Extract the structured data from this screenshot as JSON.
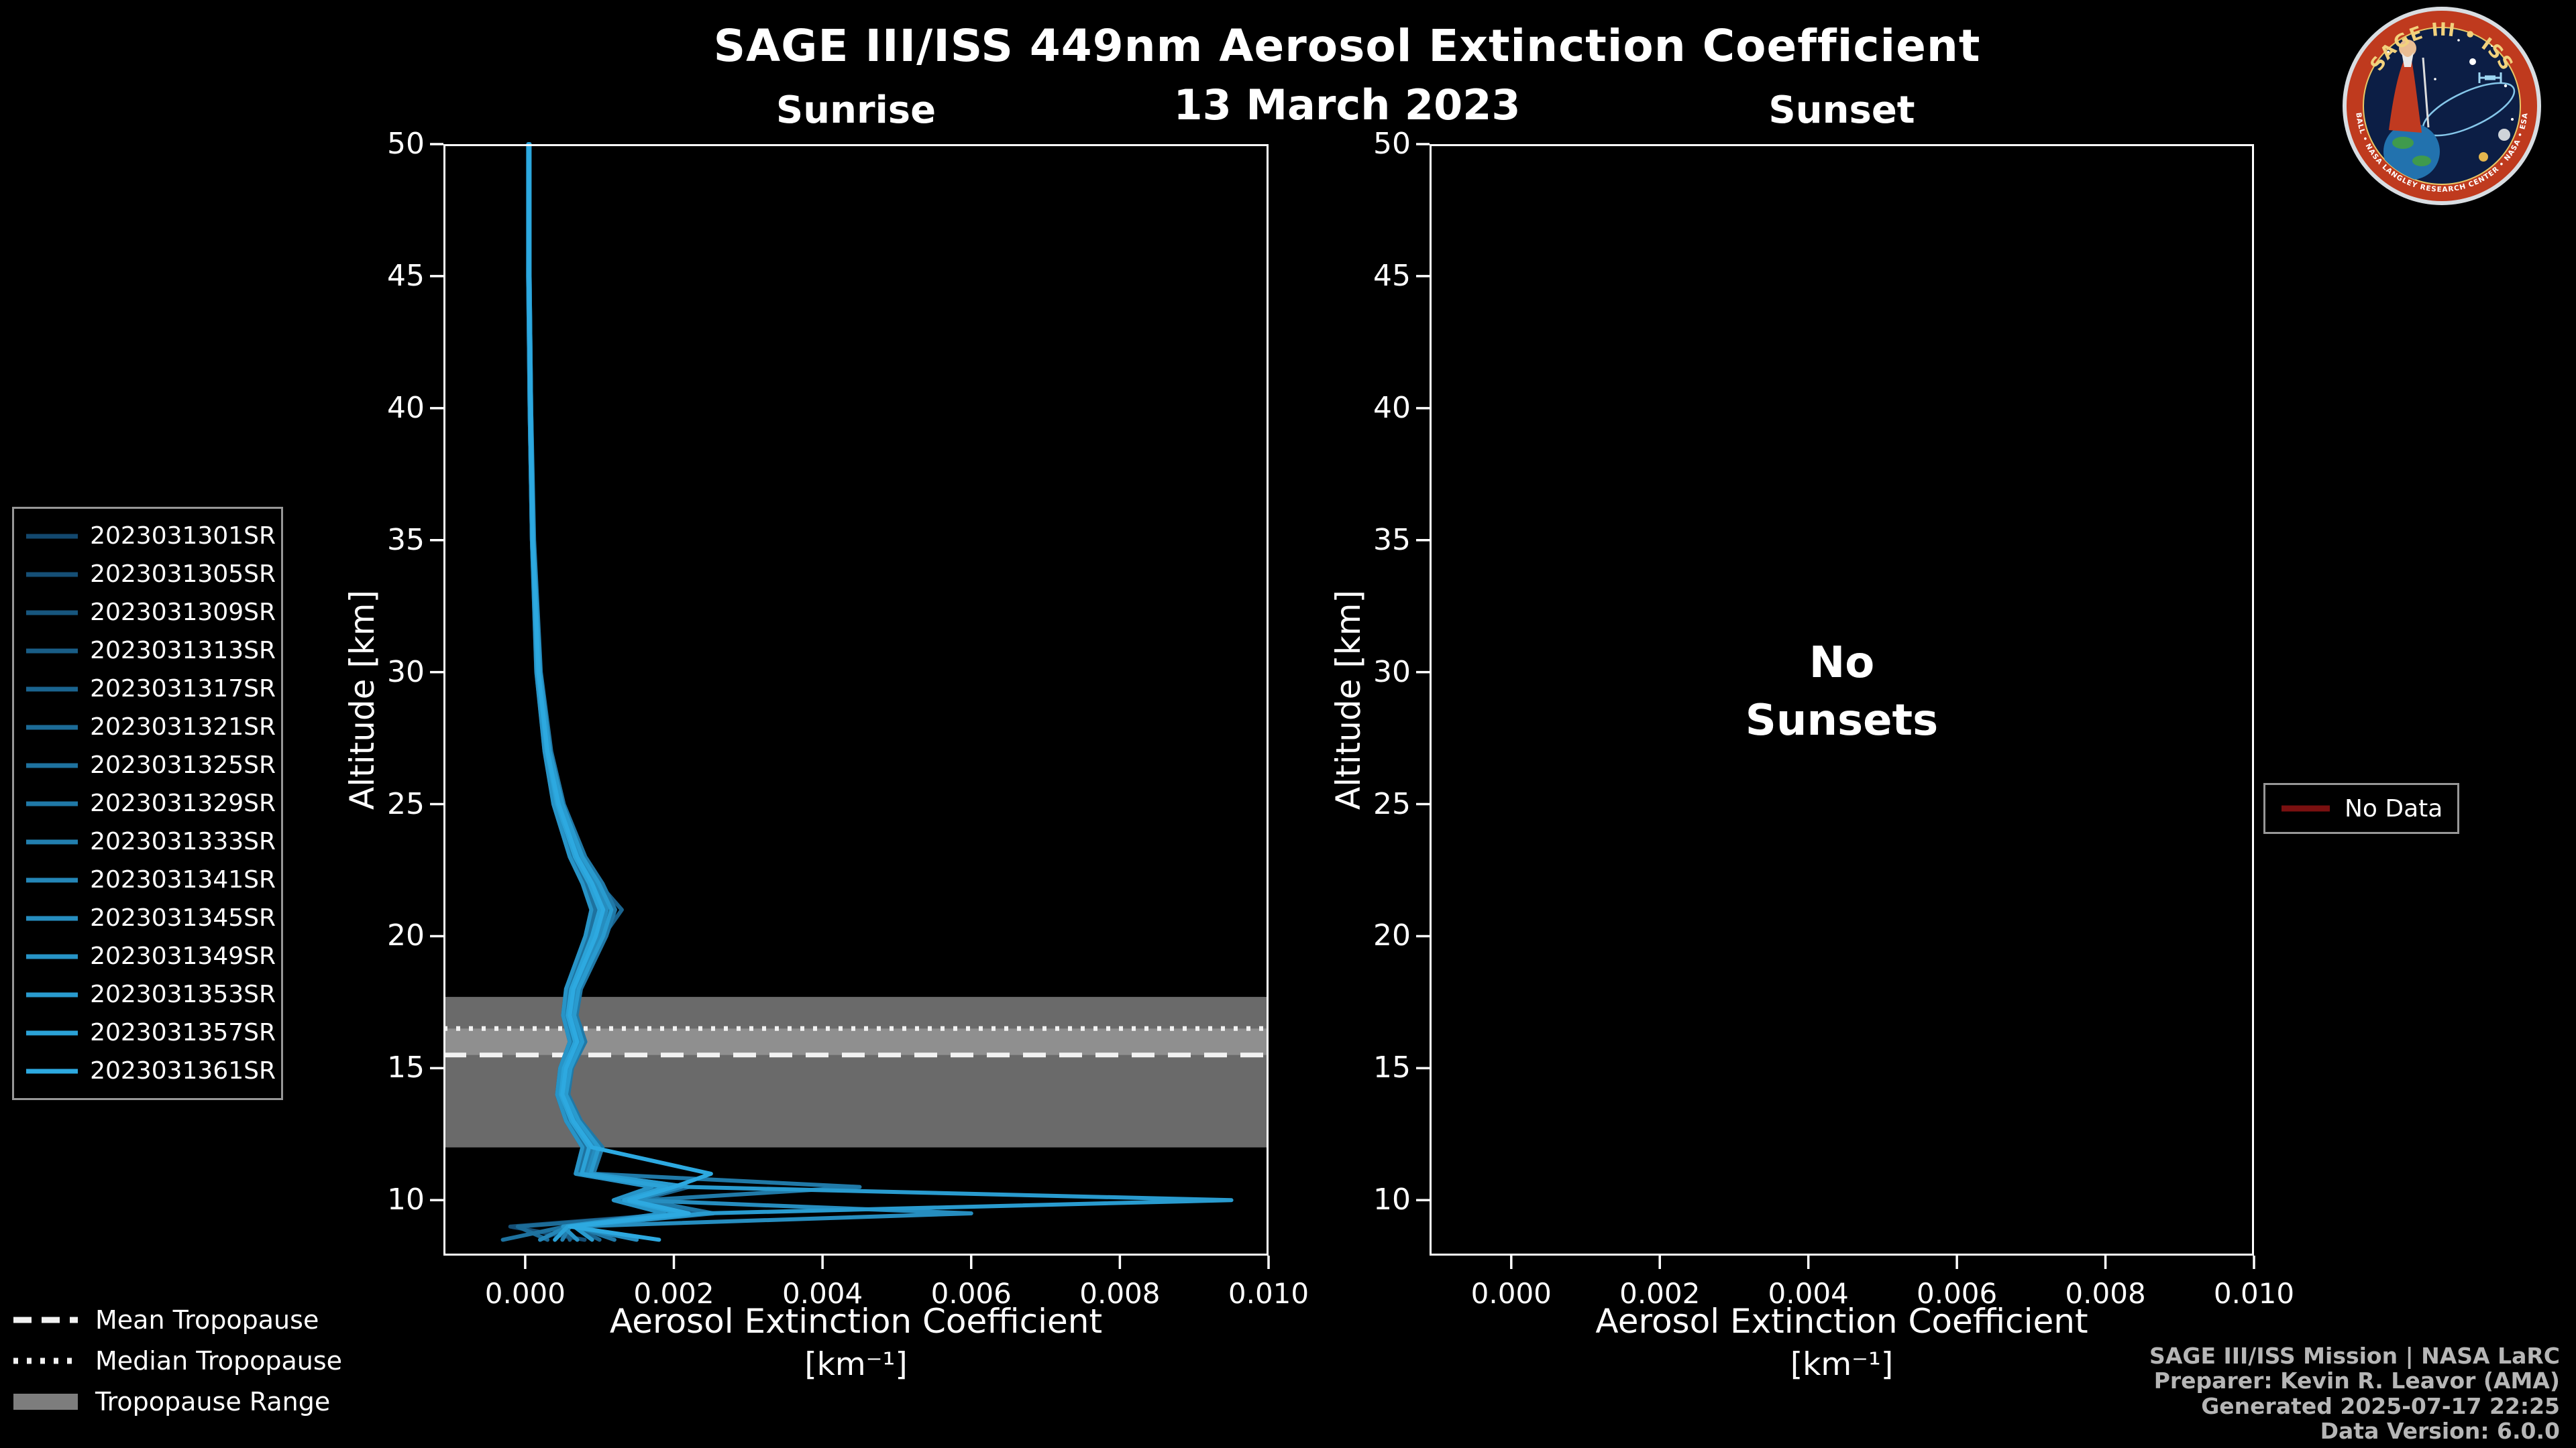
{
  "header": {
    "title": "SAGE III/ISS 449nm Aerosol Extinction Coefficient",
    "date": "13 March 2023"
  },
  "panels": {
    "sunrise": {
      "title": "Sunrise"
    },
    "sunset": {
      "title": "Sunset",
      "annotation_line1": "No",
      "annotation_line2": "Sunsets"
    }
  },
  "axes": {
    "xlabel_line1": "Aerosol Extinction Coefficient",
    "xlabel_line2": "[km⁻¹]",
    "ylabel": "Altitude [km]"
  },
  "tropopause_legend": {
    "mean_label": "Mean Tropopause",
    "median_label": "Median Tropopause",
    "range_label": "Tropopause Range"
  },
  "no_data_legend": {
    "label": "No Data",
    "color": "#7a1010"
  },
  "credits": {
    "lines": [
      "SAGE III/ISS Mission | NASA LaRC",
      "Preparer: Kevin R. Leavor (AMA)",
      "Generated 2025-07-17 22:25",
      "Data Version: 6.0.0"
    ]
  },
  "logo": {
    "title": "SAGE III • ISS",
    "ring_text": "BALL • NASA LANGLEY RESEARCH CENTER • NASA • ESA"
  },
  "chart_data": {
    "type": "line",
    "title": "SAGE III/ISS 449nm Aerosol Extinction Coefficient",
    "subtitle": "13 March 2023",
    "panel_titles": [
      "Sunrise",
      "Sunset"
    ],
    "xlabel": "Aerosol Extinction Coefficient [km⁻¹]",
    "ylabel": "Altitude [km]",
    "xlim": [
      -0.0011,
      0.01
    ],
    "ylim": [
      7.9,
      50
    ],
    "x_ticks": [
      0,
      0.002,
      0.004,
      0.006,
      0.008,
      0.01
    ],
    "x_tick_labels": [
      "0.000",
      "0.002",
      "0.004",
      "0.006",
      "0.008",
      "0.010"
    ],
    "y_ticks": [
      10,
      15,
      20,
      25,
      30,
      35,
      40,
      45,
      50
    ],
    "y_tick_labels": [
      "10",
      "15",
      "20",
      "25",
      "30",
      "35",
      "40",
      "45",
      "50"
    ],
    "grid": false,
    "legend_position": "left",
    "altitudes": [
      50,
      45,
      40,
      35,
      30,
      27,
      25,
      23,
      22,
      21,
      20,
      19,
      18,
      17,
      16,
      15,
      14,
      13,
      12,
      11,
      10.5,
      10,
      9.5,
      9,
      8.5
    ],
    "series": [
      {
        "name": "2023031301SR",
        "color": "#13486e",
        "values": [
          4e-05,
          4e-05,
          6e-05,
          9e-05,
          0.00015,
          0.00026,
          0.00038,
          0.0006,
          0.00077,
          0.00089,
          0.00081,
          0.00068,
          0.00055,
          0.00051,
          0.0006,
          0.00047,
          0.00043,
          0.00055,
          0.00077,
          0.00068,
          0.0017,
          0.00119,
          0.00187,
          0.00051,
          0.0004
        ]
      },
      {
        "name": "2023031305SR",
        "color": "#154f76",
        "values": [
          5e-05,
          5e-05,
          7e-05,
          0.0001,
          0.00017,
          0.00029,
          0.00043,
          0.00067,
          0.00086,
          0.001,
          0.0009,
          0.00076,
          0.00062,
          0.00057,
          0.00067,
          0.00052,
          0.00048,
          0.00062,
          0.00086,
          0.00076,
          0.0019,
          0.00133,
          0.00209,
          -0.0002,
          0.0008
        ]
      },
      {
        "name": "2023031309SR",
        "color": "#17567e",
        "values": [
          5e-05,
          5e-05,
          7e-05,
          0.00011,
          0.00019,
          0.00032,
          0.00047,
          0.00074,
          0.00095,
          0.0011,
          0.001,
          0.00084,
          0.00068,
          0.00063,
          0.00074,
          0.00058,
          0.00053,
          0.00068,
          0.00095,
          0.00084,
          0.0021,
          0.00147,
          0.00231,
          0.00063,
          0.0002
        ]
      },
      {
        "name": "2023031313SR",
        "color": "#195d86",
        "values": [
          5e-05,
          5e-05,
          6e-05,
          9e-05,
          0.00016,
          0.00027,
          0.00041,
          0.00063,
          0.00081,
          0.00095,
          0.00086,
          0.00072,
          0.00059,
          0.00054,
          0.00063,
          0.0005,
          0.00045,
          0.00059,
          0.00081,
          0.00072,
          0.0018,
          0.00126,
          0.00198,
          0.00054,
          0.0006
        ]
      },
      {
        "name": "2023031317SR",
        "color": "#1a648f",
        "values": [
          6e-05,
          6e-05,
          8e-05,
          0.00011,
          0.0002,
          0.00033,
          0.0005,
          0.00077,
          0.00099,
          0.0013,
          0.00105,
          0.00088,
          0.00072,
          0.00066,
          0.00077,
          0.00061,
          0.00055,
          0.00072,
          0.00099,
          0.00088,
          0.0022,
          0.00154,
          0.00242,
          0.00066,
          0.001
        ]
      },
      {
        "name": "2023031321SR",
        "color": "#1c6b97",
        "values": [
          5e-05,
          5e-05,
          7e-05,
          0.0001,
          0.00018,
          0.0003,
          0.00045,
          0.0007,
          0.0009,
          0.00105,
          0.00095,
          0.0008,
          0.00065,
          0.0006,
          0.0007,
          0.00055,
          0.0005,
          0.00065,
          0.0009,
          0.0008,
          0.002,
          0.0014,
          0.0022,
          -0.0001,
          0.0003
        ]
      },
      {
        "name": "2023031325SR",
        "color": "#1e729f",
        "values": [
          5e-05,
          4e-05,
          6e-05,
          9e-05,
          0.00016,
          0.00027,
          0.0004,
          0.00063,
          0.00081,
          0.00094,
          0.00085,
          0.00072,
          0.00058,
          0.00054,
          0.00063,
          0.00049,
          0.00045,
          0.00058,
          0.00081,
          0.00072,
          0.0018,
          0.00126,
          0.00198,
          0.00054,
          -0.0003
        ]
      },
      {
        "name": "2023031329SR",
        "color": "#2079a7",
        "values": [
          6e-05,
          6e-05,
          8e-05,
          0.00012,
          0.00021,
          0.00035,
          0.00052,
          0.00081,
          0.00104,
          0.00121,
          0.00109,
          0.00092,
          0.00075,
          0.00069,
          0.00081,
          0.00063,
          0.00058,
          0.00075,
          0.00104,
          0.00092,
          0.0045,
          0.00161,
          0.00253,
          0.00069,
          0.0012
        ]
      },
      {
        "name": "2023031333SR",
        "color": "#227faf",
        "values": [
          5e-05,
          5e-05,
          7e-05,
          0.0001,
          0.00018,
          0.0003,
          0.00045,
          0.0007,
          0.0009,
          0.00105,
          0.00095,
          0.0008,
          0.00065,
          0.0006,
          0.0007,
          0.00055,
          0.0005,
          0.00065,
          0.0009,
          0.0008,
          0.002,
          0.0014,
          0.0022,
          0.0006,
          0.0005
        ]
      },
      {
        "name": "2023031341SR",
        "color": "#2486b7",
        "values": [
          5e-05,
          5e-05,
          7e-05,
          0.0001,
          0.00017,
          0.00029,
          0.00043,
          0.00067,
          0.00086,
          0.001,
          0.0009,
          0.00076,
          0.00062,
          0.00057,
          0.00067,
          0.00052,
          0.00048,
          0.00062,
          0.00086,
          0.00076,
          0.0019,
          0.00133,
          0.00209,
          0.00057,
          0.0002
        ]
      },
      {
        "name": "2023031345SR",
        "color": "#268dbf",
        "values": [
          5e-05,
          5e-05,
          7e-05,
          0.00011,
          0.00019,
          0.00032,
          0.00047,
          0.00074,
          0.00095,
          0.0011,
          0.001,
          0.00084,
          0.00068,
          0.00063,
          0.00074,
          0.00058,
          0.00053,
          0.00068,
          0.00095,
          0.00084,
          0.0021,
          0.00147,
          0.006,
          0.00063,
          0.0015
        ]
      },
      {
        "name": "2023031349SR",
        "color": "#2794c7",
        "values": [
          4e-05,
          4e-05,
          6e-05,
          9e-05,
          0.00015,
          0.00026,
          0.00038,
          0.0006,
          0.00077,
          0.00089,
          0.00081,
          0.00068,
          0.00055,
          0.00051,
          0.0006,
          0.00047,
          0.00043,
          0.00055,
          0.00077,
          0.00068,
          0.0017,
          0.00119,
          0.00187,
          0.00051,
          0.0007
        ]
      },
      {
        "name": "2023031353SR",
        "color": "#299bcf",
        "values": [
          6e-05,
          6e-05,
          8e-05,
          0.00011,
          0.0002,
          0.00033,
          0.0005,
          0.00077,
          0.00099,
          0.00116,
          0.00105,
          0.00088,
          0.00072,
          0.00066,
          0.00077,
          0.00061,
          0.00055,
          0.00072,
          0.00099,
          0.00088,
          0.0022,
          0.0095,
          0.00242,
          0.00066,
          0.0009
        ]
      },
      {
        "name": "2023031357SR",
        "color": "#2ba2d7",
        "values": [
          5e-05,
          5e-05,
          7e-05,
          0.0001,
          0.00017,
          0.00029,
          0.00043,
          0.00067,
          0.00086,
          0.001,
          0.0009,
          0.00076,
          0.00062,
          0.00057,
          0.00067,
          0.00052,
          0.00048,
          0.00062,
          0.00086,
          0.00076,
          0.0019,
          0.00133,
          0.00209,
          0.00057,
          0.0004
        ]
      },
      {
        "name": "2023031361SR",
        "color": "#2da9e0",
        "values": [
          5e-05,
          5e-05,
          7e-05,
          0.0001,
          0.00018,
          0.0003,
          0.00045,
          0.0007,
          0.0009,
          0.00105,
          0.00095,
          0.0008,
          0.00065,
          0.0006,
          0.0007,
          0.00055,
          0.0005,
          0.00065,
          0.0009,
          0.0025,
          0.002,
          0.0014,
          0.0022,
          0.0006,
          0.0018
        ]
      }
    ],
    "sunset_series": [],
    "sunset_annotation": "No Sunsets",
    "tropopause": {
      "mean_km": 15.5,
      "median_km": 16.5,
      "range_km": [
        12.0,
        17.7
      ]
    }
  }
}
